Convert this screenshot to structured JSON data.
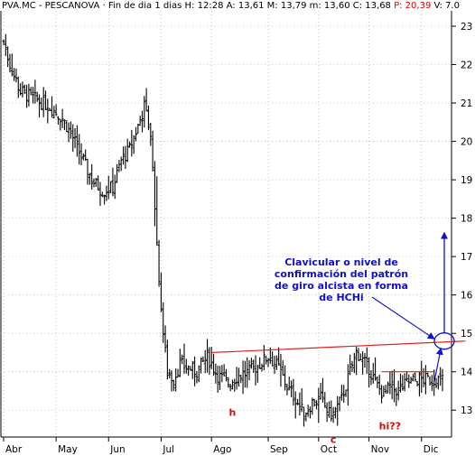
{
  "header": {
    "symbol": "PVA.MC",
    "name": "PESCANOVA",
    "period": "Fin de dia 1 dias",
    "stats": [
      {
        "key": "H",
        "value": "12:28",
        "color": "#000000"
      },
      {
        "key": "A",
        "value": "13,61",
        "color": "#000000"
      },
      {
        "key": "M",
        "value": "13,79",
        "color": "#000000"
      },
      {
        "key": "m",
        "value": "13,60",
        "color": "#000000"
      },
      {
        "key": "C",
        "value": "13,68",
        "color": "#000000"
      },
      {
        "key": "P",
        "value": "20,39",
        "color": "#e00000"
      },
      {
        "key": "V",
        "value": "7.0",
        "color": "#000000"
      }
    ]
  },
  "chart_data": {
    "type": "ohlc",
    "title": "PVA.MC - PESCANOVA",
    "ylim": [
      12.3,
      23.4
    ],
    "yticks": [
      "13",
      "14",
      "15",
      "16",
      "17",
      "18",
      "19",
      "20",
      "21",
      "22",
      "23"
    ],
    "months": [
      "Abr",
      "May",
      "Jun",
      "Jul",
      "Ago",
      "Sep",
      "Oct",
      "Nov",
      "Dic"
    ],
    "month_index": [
      0,
      25,
      50,
      75,
      99,
      126,
      150,
      174,
      199
    ],
    "n_bars": 210,
    "close_anchors": [
      [
        0,
        22.6
      ],
      [
        3,
        22.0
      ],
      [
        8,
        21.3
      ],
      [
        15,
        21.1
      ],
      [
        22,
        20.9
      ],
      [
        28,
        20.6
      ],
      [
        33,
        20.1
      ],
      [
        37,
        19.6
      ],
      [
        42,
        19.0
      ],
      [
        47,
        18.7
      ],
      [
        52,
        18.8
      ],
      [
        56,
        19.5
      ],
      [
        60,
        19.8
      ],
      [
        64,
        20.4
      ],
      [
        67,
        20.9
      ],
      [
        70,
        20.2
      ],
      [
        72,
        18.3
      ],
      [
        74,
        16.4
      ],
      [
        76,
        15.0
      ],
      [
        78,
        14.0
      ],
      [
        81,
        13.8
      ],
      [
        84,
        14.2
      ],
      [
        88,
        14.1
      ],
      [
        92,
        14.0
      ],
      [
        97,
        14.4
      ],
      [
        102,
        13.9
      ],
      [
        107,
        13.7
      ],
      [
        112,
        13.9
      ],
      [
        117,
        14.0
      ],
      [
        122,
        14.2
      ],
      [
        126,
        14.4
      ],
      [
        131,
        14.1
      ],
      [
        135,
        13.6
      ],
      [
        139,
        13.3
      ],
      [
        143,
        12.9
      ],
      [
        147,
        13.2
      ],
      [
        151,
        13.3
      ],
      [
        155,
        12.9
      ],
      [
        157,
        12.9
      ],
      [
        161,
        13.3
      ],
      [
        165,
        14.0
      ],
      [
        168,
        14.5
      ],
      [
        171,
        14.3
      ],
      [
        174,
        14.1
      ],
      [
        177,
        13.7
      ],
      [
        181,
        13.4
      ],
      [
        184,
        13.6
      ],
      [
        188,
        13.5
      ],
      [
        192,
        13.7
      ],
      [
        197,
        13.8
      ]
    ],
    "neckline": {
      "from": [
        99,
        14.5
      ],
      "to": [
        220,
        14.8
      ]
    },
    "resistance": {
      "from": [
        180,
        14.0
      ],
      "to": [
        205,
        14.0
      ]
    },
    "target": {
      "value": 17.6
    },
    "annotations": [
      {
        "text": "h",
        "x": 109,
        "y": 12.85
      },
      {
        "text": "c",
        "x": 157,
        "y": 12.15
      },
      {
        "text": "hi??",
        "x": 184,
        "y": 12.5
      }
    ],
    "note": [
      "Clavicular o nivel de",
      "confirmación del patrón",
      "de giro alcista en forma",
      "de HCHi"
    ]
  },
  "colors": {
    "bars": "#000000",
    "neckline": "#e02020",
    "arrows": "#1010c8",
    "grid": "#b8b8b8",
    "header_red": "#e00000"
  }
}
